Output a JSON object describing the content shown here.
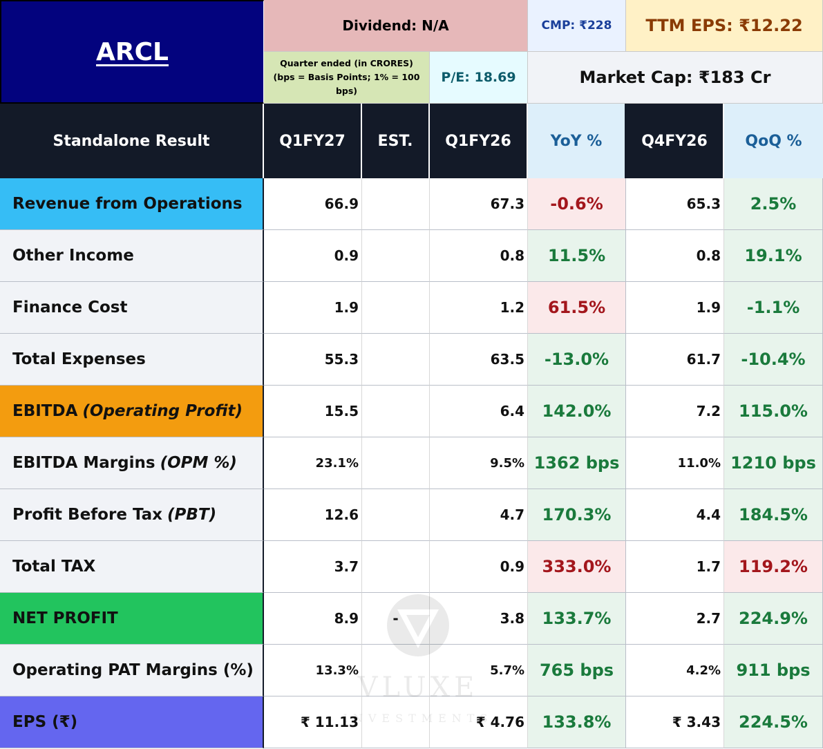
{
  "header": {
    "ticker": "ARCL",
    "dividend": "Dividend: N/A",
    "cmp": "CMP: ₹228",
    "ttm_eps": "TTM EPS: ₹12.22",
    "quarter_note": "Quarter ended (in CRORES) (bps = Basis Points; 1% = 100 bps)",
    "pe": "P/E: 18.69",
    "market_cap": "Market Cap: ₹183 Cr"
  },
  "columns": [
    "Standalone Result",
    "Q1FY27",
    "EST.",
    "Q1FY26",
    "YoY %",
    "Q4FY26",
    "QoQ %"
  ],
  "colors": {
    "ticker_bg": "#03037e",
    "revenue_bg": "#36bdf5",
    "ebitda_bg": "#f39c0f",
    "net_profit_bg": "#22c45e",
    "eps_bg": "#6466ef",
    "positive": "#1a7a3c",
    "negative": "#a3161c"
  },
  "rows": [
    {
      "label": "Revenue from Operations",
      "label_italic": "",
      "q1fy27": "66.9",
      "est": "",
      "q1fy26": "67.3",
      "yoy": "-0.6%",
      "yoy_tone": "neg",
      "q4fy26": "65.3",
      "qoq": "2.5%",
      "qoq_tone": "pos"
    },
    {
      "label": "Other Income",
      "label_italic": "",
      "q1fy27": "0.9",
      "est": "",
      "q1fy26": "0.8",
      "yoy": "11.5%",
      "yoy_tone": "pos",
      "q4fy26": "0.8",
      "qoq": "19.1%",
      "qoq_tone": "pos"
    },
    {
      "label": "Finance Cost",
      "label_italic": "",
      "q1fy27": "1.9",
      "est": "",
      "q1fy26": "1.2",
      "yoy": "61.5%",
      "yoy_tone": "neg",
      "q4fy26": "1.9",
      "qoq": "-1.1%",
      "qoq_tone": "pos"
    },
    {
      "label": "Total Expenses",
      "label_italic": "",
      "q1fy27": "55.3",
      "est": "",
      "q1fy26": "63.5",
      "yoy": "-13.0%",
      "yoy_tone": "pos",
      "q4fy26": "61.7",
      "qoq": "-10.4%",
      "qoq_tone": "pos"
    },
    {
      "label": "EBITDA",
      "label_italic": "(Operating Profit)",
      "q1fy27": "15.5",
      "est": "",
      "q1fy26": "6.4",
      "yoy": "142.0%",
      "yoy_tone": "pos",
      "q4fy26": "7.2",
      "qoq": "115.0%",
      "qoq_tone": "pos"
    },
    {
      "label": "EBITDA Margins",
      "label_italic": "(OPM %)",
      "q1fy27": "23.1%",
      "est": "",
      "q1fy26": "9.5%",
      "yoy": "1362 bps",
      "yoy_tone": "pos",
      "q4fy26": "11.0%",
      "qoq": "1210 bps",
      "qoq_tone": "pos"
    },
    {
      "label": "Profit Before Tax",
      "label_italic": "(PBT)",
      "q1fy27": "12.6",
      "est": "",
      "q1fy26": "4.7",
      "yoy": "170.3%",
      "yoy_tone": "pos",
      "q4fy26": "4.4",
      "qoq": "184.5%",
      "qoq_tone": "pos"
    },
    {
      "label": "Total TAX",
      "label_italic": "",
      "q1fy27": "3.7",
      "est": "",
      "q1fy26": "0.9",
      "yoy": "333.0%",
      "yoy_tone": "neg",
      "q4fy26": "1.7",
      "qoq": "119.2%",
      "qoq_tone": "neg"
    },
    {
      "label": "NET PROFIT",
      "label_italic": "",
      "q1fy27": "8.9",
      "est": "-",
      "q1fy26": "3.8",
      "yoy": "133.7%",
      "yoy_tone": "pos",
      "q4fy26": "2.7",
      "qoq": "224.9%",
      "qoq_tone": "pos"
    },
    {
      "label": "Operating PAT Margins (%)",
      "label_italic": "",
      "q1fy27": "13.3%",
      "est": "",
      "q1fy26": "5.7%",
      "yoy": "765 bps",
      "yoy_tone": "pos",
      "q4fy26": "4.2%",
      "qoq": "911 bps",
      "qoq_tone": "pos"
    },
    {
      "label": "EPS (₹)",
      "label_italic": "",
      "q1fy27": "₹ 11.13",
      "est": "",
      "q1fy26": "₹ 4.76",
      "yoy": "133.8%",
      "yoy_tone": "pos",
      "q4fy26": "₹ 3.43",
      "qoq": "224.5%",
      "qoq_tone": "pos"
    }
  ],
  "watermark": {
    "brand": "VLUXE",
    "sub": "INVESTMENTS"
  }
}
